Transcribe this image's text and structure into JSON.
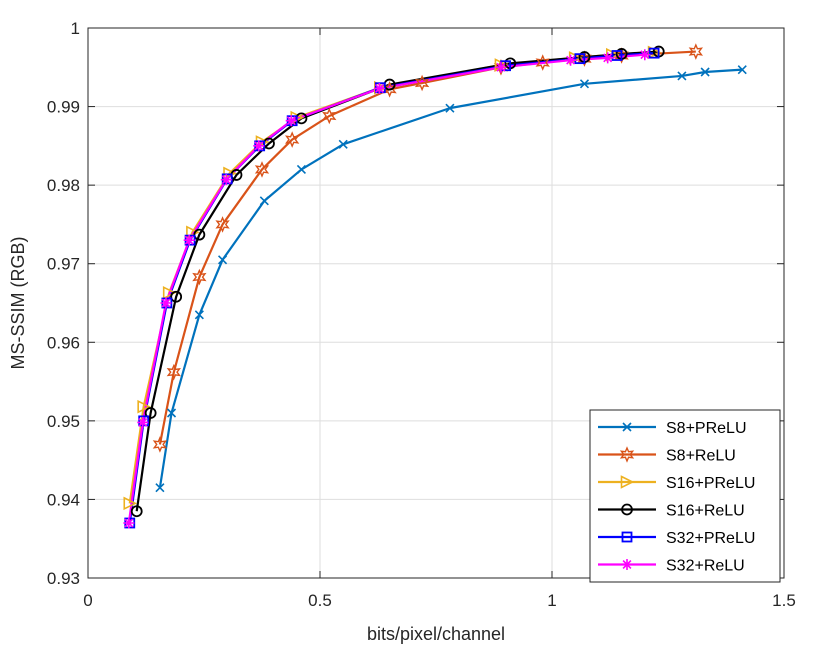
{
  "chart_data": {
    "type": "line",
    "title": "",
    "xlabel": "bits/pixel/channel",
    "ylabel": "MS-SSIM (RGB)",
    "xlim": [
      0,
      1.5
    ],
    "ylim": [
      0.93,
      1.0
    ],
    "xticks": [
      0,
      0.5,
      1,
      1.5
    ],
    "xtick_labels": [
      "0",
      "0.5",
      "1",
      "1.5"
    ],
    "yticks": [
      0.93,
      0.94,
      0.95,
      0.96,
      0.97,
      0.98,
      0.99,
      1.0
    ],
    "ytick_labels": [
      "0.93",
      "0.94",
      "0.95",
      "0.96",
      "0.97",
      "0.98",
      "0.99",
      "1"
    ],
    "grid": true,
    "legend_position": "bottom-right",
    "series": [
      {
        "name": "S8+PReLU",
        "color": "#0072BD",
        "marker": "x",
        "x": [
          0.155,
          0.18,
          0.24,
          0.29,
          0.38,
          0.46,
          0.55,
          0.78,
          1.07,
          1.28,
          1.33,
          1.41
        ],
        "y": [
          0.9415,
          0.951,
          0.9635,
          0.9705,
          0.978,
          0.982,
          0.9852,
          0.9898,
          0.9929,
          0.9939,
          0.9944,
          0.9947
        ]
      },
      {
        "name": "S8+ReLU",
        "color": "#D95319",
        "marker": "hexagram",
        "x": [
          0.155,
          0.185,
          0.24,
          0.29,
          0.375,
          0.44,
          0.52,
          0.65,
          0.72,
          0.89,
          0.98,
          1.07,
          1.15,
          1.31
        ],
        "y": [
          0.947,
          0.9562,
          0.9683,
          0.975,
          0.982,
          0.9858,
          0.9888,
          0.9922,
          0.993,
          0.995,
          0.9956,
          0.9961,
          0.9965,
          0.997
        ]
      },
      {
        "name": "S16+PReLU",
        "color": "#EDB120",
        "marker": "triangle-right",
        "x": [
          0.09,
          0.12,
          0.175,
          0.225,
          0.305,
          0.375,
          0.45,
          0.63,
          0.89,
          1.05,
          1.13,
          1.22
        ],
        "y": [
          0.9395,
          0.9518,
          0.9663,
          0.974,
          0.9815,
          0.9855,
          0.9886,
          0.9924,
          0.9953,
          0.9962,
          0.9966,
          0.9969
        ]
      },
      {
        "name": "S16+ReLU",
        "color": "#000000",
        "marker": "circle",
        "x": [
          0.105,
          0.135,
          0.19,
          0.24,
          0.32,
          0.39,
          0.46,
          0.65,
          0.91,
          1.07,
          1.15,
          1.23
        ],
        "y": [
          0.9385,
          0.951,
          0.9658,
          0.9737,
          0.9813,
          0.9853,
          0.9885,
          0.9928,
          0.9955,
          0.9963,
          0.9967,
          0.997
        ]
      },
      {
        "name": "S32+PReLU",
        "color": "#0000FF",
        "marker": "square",
        "x": [
          0.09,
          0.12,
          0.17,
          0.22,
          0.3,
          0.37,
          0.44,
          0.63,
          0.9,
          1.06,
          1.14,
          1.22
        ],
        "y": [
          0.937,
          0.95,
          0.965,
          0.973,
          0.9808,
          0.985,
          0.9882,
          0.9924,
          0.9952,
          0.9961,
          0.9965,
          0.9968
        ]
      },
      {
        "name": "S32+ReLU",
        "color": "#FF00FF",
        "marker": "asterisk",
        "x": [
          0.088,
          0.118,
          0.168,
          0.218,
          0.298,
          0.368,
          0.438,
          0.628,
          0.89,
          1.04,
          1.12,
          1.2
        ],
        "y": [
          0.937,
          0.9498,
          0.965,
          0.973,
          0.9807,
          0.985,
          0.9882,
          0.9923,
          0.995,
          0.9959,
          0.9962,
          0.9966
        ]
      }
    ]
  }
}
